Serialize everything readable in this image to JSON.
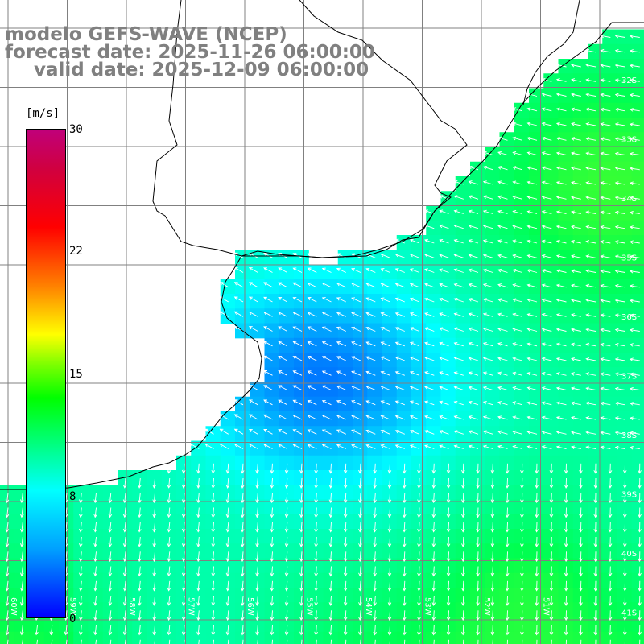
{
  "header": {
    "line1": "modelo GEFS-WAVE (NCEP)",
    "line2": "forecast date: 2025-11-26 06:00:00",
    "line3": "valid date: 2025-12-09 06:00:00"
  },
  "legend": {
    "units": "[m/s]",
    "ticks": [
      "30",
      "22",
      "15",
      "8",
      "0"
    ],
    "colors": [
      "#0000ff",
      "#00a0ff",
      "#00ffff",
      "#00ff00",
      "#ffff00",
      "#ff8000",
      "#ff0000",
      "#c0007a"
    ]
  },
  "map": {
    "lat_labels": [
      "32S",
      "33S",
      "34S",
      "35S",
      "36S",
      "37S",
      "38S",
      "39S",
      "40S",
      "41S"
    ],
    "lon_labels": [
      "60W",
      "59W",
      "58W",
      "57W",
      "56W",
      "55W",
      "54W",
      "53W",
      "52W",
      "51W"
    ],
    "land_color": "#ffffff",
    "coast_color": "#000000",
    "arrow_color": "#ffffff"
  }
}
